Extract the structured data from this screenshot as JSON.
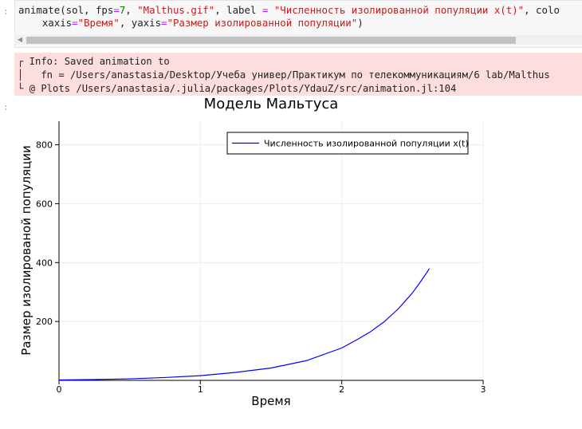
{
  "input_prompt": ":",
  "output_prompt": ":",
  "code_lines": [
    [
      {
        "t": "animate(sol, fps",
        "c": ""
      },
      {
        "t": "=",
        "c": "op"
      },
      {
        "t": "7",
        "c": "num"
      },
      {
        "t": ", ",
        "c": ""
      },
      {
        "t": "\"Malthus.gif\"",
        "c": "str"
      },
      {
        "t": ", label ",
        "c": ""
      },
      {
        "t": "=",
        "c": "op"
      },
      {
        "t": " ",
        "c": ""
      },
      {
        "t": "\"Численность изолированной популяции x(t)\"",
        "c": "str"
      },
      {
        "t": ", colo",
        "c": ""
      }
    ],
    [
      {
        "t": "    xaxis",
        "c": ""
      },
      {
        "t": "=",
        "c": "op"
      },
      {
        "t": "\"Время\"",
        "c": "str"
      },
      {
        "t": ", yaxis",
        "c": ""
      },
      {
        "t": "=",
        "c": "op"
      },
      {
        "t": "\"Размер изолированной популяции\"",
        "c": "str"
      },
      {
        "t": ")",
        "c": ""
      }
    ]
  ],
  "stderr_lines": [
    "┌ Info: Saved animation to",
    "│   fn = /Users/anastasia/Desktop/Учеба универ/Практикум по телекоммуникациям/6 lab/Malthus",
    "└ @ Plots /Users/anastasia/.julia/packages/Plots/YdauZ/src/animation.jl:104"
  ],
  "chart_data": {
    "type": "line",
    "title": "Модель Мальтуса",
    "xlabel": "Время",
    "ylabel": "Размер изолированой популяции",
    "xlim": [
      0,
      3
    ],
    "ylim": [
      0,
      880
    ],
    "xticks": [
      0,
      1,
      2,
      3
    ],
    "yticks": [
      200,
      400,
      600,
      800
    ],
    "grid": true,
    "legend_position": "top-right",
    "series": [
      {
        "name": "Численность изолированной популяции x(t)",
        "color": "#0000ff",
        "x": [
          0,
          0.25,
          0.5,
          0.75,
          1.0,
          1.25,
          1.5,
          1.75,
          2.0,
          2.1,
          2.2,
          2.3,
          2.4,
          2.5,
          2.55,
          2.6,
          2.62
        ],
        "y": [
          1.5,
          2.8,
          5.2,
          9.7,
          16,
          27,
          42,
          67,
          110,
          136,
          164,
          199,
          243,
          297,
          330,
          365,
          380
        ]
      }
    ]
  }
}
